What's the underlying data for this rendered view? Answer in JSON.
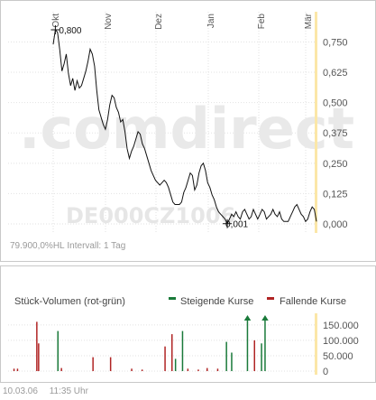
{
  "chart_data": [
    {
      "type": "line",
      "months": [
        "Okt",
        "Nov",
        "Dez",
        "Jan",
        "Feb",
        "Mär"
      ],
      "y_ticks": [
        "0,750",
        "0,625",
        "0,500",
        "0,375",
        "0,250",
        "0,125",
        "0,000"
      ],
      "ylim": [
        0,
        0.8
      ],
      "grid": true,
      "annotations": {
        "max_label": "0,800",
        "min_label": "0,001"
      },
      "watermark": {
        "brand": ".comdirect",
        "isin": "DE000CZ1006"
      },
      "series": [
        {
          "values": [
            0.74,
            0.8,
            0.79,
            0.72,
            0.63,
            0.66,
            0.7,
            0.62,
            0.57,
            0.6,
            0.55,
            0.59,
            0.56,
            0.57,
            0.6,
            0.63,
            0.67,
            0.72,
            0.7,
            0.65,
            0.55,
            0.47,
            0.44,
            0.41,
            0.39,
            0.43,
            0.49,
            0.53,
            0.52,
            0.48,
            0.46,
            0.42,
            0.43,
            0.38,
            0.31,
            0.27,
            0.3,
            0.32,
            0.35,
            0.38,
            0.37,
            0.33,
            0.31,
            0.28,
            0.25,
            0.22,
            0.2,
            0.18,
            0.17,
            0.16,
            0.17,
            0.18,
            0.17,
            0.15,
            0.12,
            0.09,
            0.08,
            0.08,
            0.08,
            0.09,
            0.13,
            0.15,
            0.18,
            0.21,
            0.2,
            0.14,
            0.16,
            0.21,
            0.24,
            0.25,
            0.22,
            0.17,
            0.15,
            0.12,
            0.1,
            0.07,
            0.05,
            0.04,
            0.03,
            0.02,
            0.001,
            0.02,
            0.04,
            0.03,
            0.05,
            0.03,
            0.02,
            0.05,
            0.06,
            0.04,
            0.02,
            0.03,
            0.06,
            0.04,
            0.02,
            0.04,
            0.06,
            0.05,
            0.02,
            0.03,
            0.04,
            0.06,
            0.04,
            0.03,
            0.05,
            0.02,
            0.01,
            0.01,
            0.01,
            0.03,
            0.05,
            0.07,
            0.08,
            0.06,
            0.04,
            0.03,
            0.01,
            0.02,
            0.05,
            0.07,
            0.06,
            0.01
          ]
        }
      ]
    },
    {
      "type": "bar",
      "title": "Stück-Volumen (rot-grün)",
      "y_ticks": [
        "150.000",
        "100.000",
        "50.000",
        "0"
      ],
      "ylim": [
        0,
        170000
      ],
      "legend": [
        {
          "label": "Steigende Kurse",
          "color": "#1a7a3a"
        },
        {
          "label": "Fallende Kurse",
          "color": "#b02424"
        }
      ],
      "bars": [
        {
          "day": 3,
          "value": 8000,
          "dir": "down"
        },
        {
          "day": 5,
          "value": 8000,
          "dir": "down"
        },
        {
          "day": 16,
          "value": 160000,
          "dir": "down"
        },
        {
          "day": 17,
          "value": 90000,
          "dir": "down"
        },
        {
          "day": 28,
          "value": 130000,
          "dir": "up"
        },
        {
          "day": 30,
          "value": 10000,
          "dir": "down"
        },
        {
          "day": 48,
          "value": 45000,
          "dir": "down"
        },
        {
          "day": 58,
          "value": 45000,
          "dir": "down"
        },
        {
          "day": 70,
          "value": 8000,
          "dir": "down"
        },
        {
          "day": 76,
          "value": 5000,
          "dir": "down"
        },
        {
          "day": 89,
          "value": 80000,
          "dir": "down"
        },
        {
          "day": 93,
          "value": 120000,
          "dir": "down"
        },
        {
          "day": 95,
          "value": 40000,
          "dir": "up"
        },
        {
          "day": 99,
          "value": 130000,
          "dir": "up"
        },
        {
          "day": 102,
          "value": 8000,
          "dir": "down"
        },
        {
          "day": 108,
          "value": 5000,
          "dir": "down"
        },
        {
          "day": 113,
          "value": 10000,
          "dir": "down"
        },
        {
          "day": 119,
          "value": 8000,
          "dir": "down"
        },
        {
          "day": 124,
          "value": 95000,
          "dir": "up"
        },
        {
          "day": 127,
          "value": 60000,
          "dir": "up"
        },
        {
          "day": 136,
          "value": 160000,
          "dir": "up"
        },
        {
          "day": 140,
          "value": 100000,
          "dir": "down"
        },
        {
          "day": 144,
          "value": 90000,
          "dir": "up"
        },
        {
          "day": 146,
          "value": 160000,
          "dir": "up"
        }
      ],
      "clipped_days": [
        136,
        146
      ]
    }
  ],
  "info": {
    "left": "79.900,0%",
    "mid": "HL",
    "interval": "Intervall: 1 Tag"
  },
  "footer": {
    "date": "10.03.06",
    "time": "11:35 Uhr"
  },
  "legend_labels": {
    "up": "Steigende Kurse",
    "down": "Fallende Kurse",
    "title": "Stück-Volumen (rot-grün)"
  },
  "colors": {
    "up": "#1a7a3a",
    "down": "#b02424",
    "grid": "#e2e2e2",
    "axis_band": "#fbe7a8"
  }
}
